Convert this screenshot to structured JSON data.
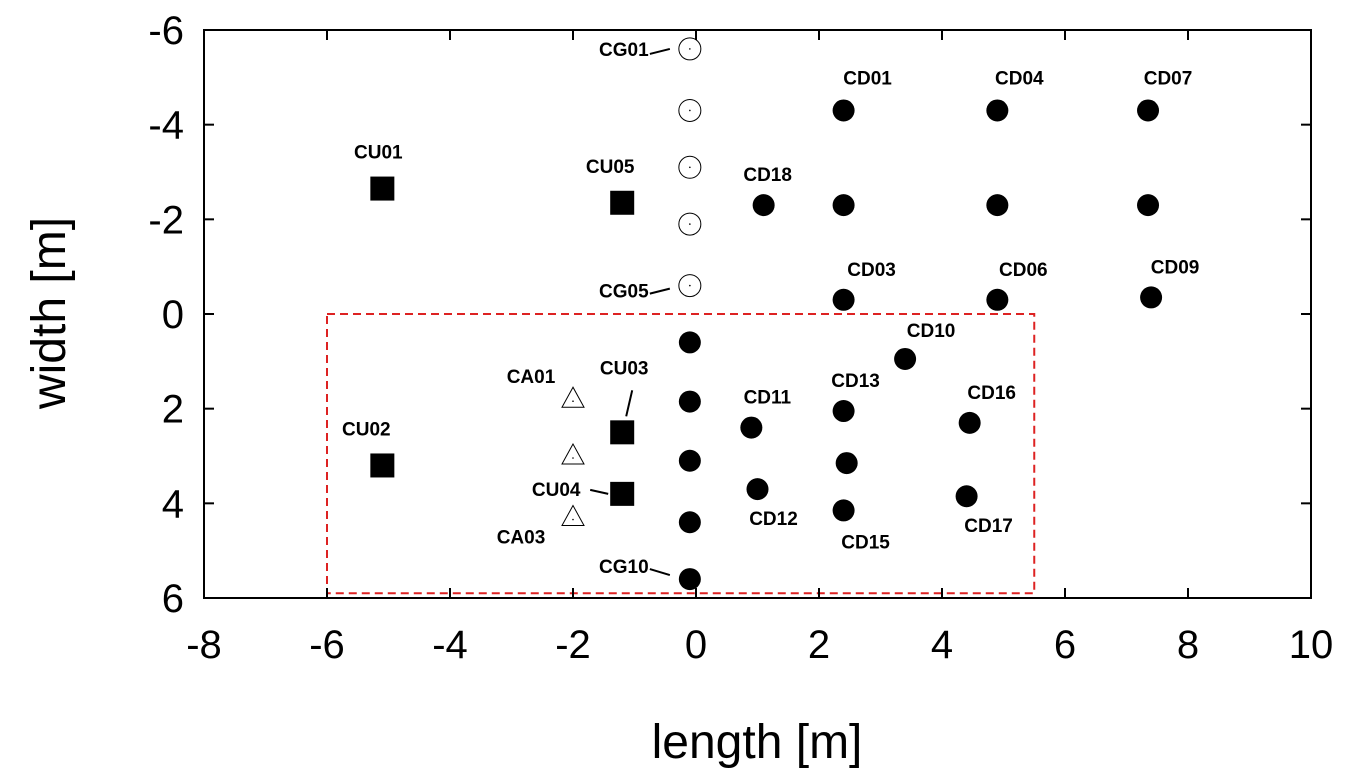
{
  "chart_data": {
    "type": "scatter",
    "xlabel": "length [m]",
    "ylabel": "width [m]",
    "xlim": [
      -8,
      10
    ],
    "ylim": [
      -6,
      6
    ],
    "y_inverted": true,
    "xticks": [
      "-8",
      "-6",
      "-4",
      "-2",
      "0",
      "2",
      "4",
      "6",
      "8",
      "10"
    ],
    "yticks": [
      "-6",
      "-4",
      "-2",
      "0",
      "2",
      "4",
      "6"
    ],
    "grid": false,
    "highlight_box": {
      "x": [
        -6,
        5.5
      ],
      "y": [
        0,
        5.9
      ],
      "color": "#dd2222",
      "style": "dashed"
    },
    "series": [
      {
        "marker": "open-circle",
        "points": [
          {
            "x": -0.1,
            "y": -5.6,
            "label": "CG01"
          },
          {
            "x": -0.1,
            "y": -4.3,
            "label": ""
          },
          {
            "x": -0.1,
            "y": -3.1,
            "label": ""
          },
          {
            "x": -0.1,
            "y": -1.9,
            "label": ""
          },
          {
            "x": -0.1,
            "y": -0.6,
            "label": "CG05"
          }
        ]
      },
      {
        "marker": "filled-circle",
        "points": [
          {
            "x": -0.1,
            "y": 0.6,
            "label": ""
          },
          {
            "x": -0.1,
            "y": 1.85,
            "label": ""
          },
          {
            "x": -0.1,
            "y": 3.1,
            "label": ""
          },
          {
            "x": -0.1,
            "y": 4.4,
            "label": ""
          },
          {
            "x": -0.1,
            "y": 5.6,
            "label": "CG10"
          },
          {
            "x": 2.4,
            "y": -4.3,
            "label": "CD01"
          },
          {
            "x": 2.4,
            "y": -2.3,
            "label": ""
          },
          {
            "x": 2.4,
            "y": -0.3,
            "label": "CD03"
          },
          {
            "x": 4.9,
            "y": -4.3,
            "label": "CD04"
          },
          {
            "x": 4.9,
            "y": -2.3,
            "label": ""
          },
          {
            "x": 4.9,
            "y": -0.3,
            "label": "CD06"
          },
          {
            "x": 7.35,
            "y": -4.3,
            "label": "CD07"
          },
          {
            "x": 7.35,
            "y": -2.3,
            "label": ""
          },
          {
            "x": 7.4,
            "y": -0.35,
            "label": "CD09"
          },
          {
            "x": 3.4,
            "y": 0.95,
            "label": "CD10"
          },
          {
            "x": 0.9,
            "y": 2.4,
            "label": "CD11"
          },
          {
            "x": 1.0,
            "y": 3.7,
            "label": "CD12"
          },
          {
            "x": 2.4,
            "y": 2.05,
            "label": "CD13"
          },
          {
            "x": 2.45,
            "y": 3.15,
            "label": ""
          },
          {
            "x": 2.4,
            "y": 4.15,
            "label": "CD15"
          },
          {
            "x": 4.45,
            "y": 2.3,
            "label": "CD16"
          },
          {
            "x": 4.4,
            "y": 3.85,
            "label": "CD17"
          },
          {
            "x": 1.1,
            "y": -2.3,
            "label": "CD18"
          }
        ]
      },
      {
        "marker": "filled-square",
        "points": [
          {
            "x": -5.1,
            "y": -2.65,
            "label": "CU01"
          },
          {
            "x": -5.1,
            "y": 3.2,
            "label": "CU02"
          },
          {
            "x": -1.2,
            "y": 2.5,
            "label": "CU03"
          },
          {
            "x": -1.2,
            "y": 3.8,
            "label": "CU04"
          },
          {
            "x": -1.2,
            "y": -2.35,
            "label": "CU05"
          }
        ]
      },
      {
        "marker": "open-triangle",
        "points": [
          {
            "x": -2.0,
            "y": 1.8,
            "label": "CA01"
          },
          {
            "x": -2.0,
            "y": 3.0,
            "label": ""
          },
          {
            "x": -2.0,
            "y": 4.3,
            "label": "CA03"
          }
        ]
      }
    ]
  }
}
